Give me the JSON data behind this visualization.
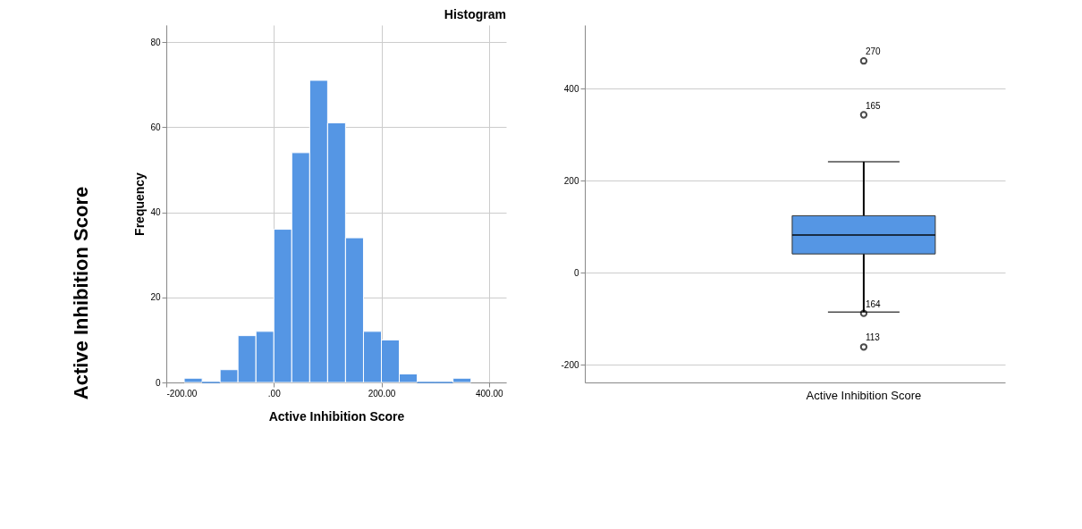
{
  "chart_data": [
    {
      "type": "histogram",
      "title": "Histogram",
      "xlabel": "Active Inhibition Score",
      "ylabel": "Frequency",
      "bins": [
        -166.7,
        -133.3,
        -100,
        -66.7,
        -33.3,
        0,
        33.3,
        66.7,
        100,
        133.3,
        166.7,
        200,
        233.3,
        266.7,
        300,
        333.3,
        366.7
      ],
      "values": [
        1,
        0,
        3,
        11,
        12,
        36,
        54,
        71,
        61,
        34,
        12,
        10,
        2,
        0,
        0,
        1
      ],
      "color": "#5596e4",
      "xlim": [
        -200,
        432
      ],
      "xticks": [
        {
          "value": -200,
          "label": "-200.00"
        },
        {
          "value": 0,
          "label": ".00"
        },
        {
          "value": 200,
          "label": "200.00"
        },
        {
          "value": 400,
          "label": "400.00"
        }
      ],
      "ylim": [
        0,
        84
      ],
      "yticks": [
        0,
        20,
        40,
        60,
        80
      ],
      "grid": true,
      "annotations": [
        "Active Inhibition Score"
      ]
    },
    {
      "type": "box",
      "categories": [
        "Active Inhibition Score"
      ],
      "color": "#5596e4",
      "boxes": [
        {
          "low": -85,
          "q1": 41,
          "median": 82,
          "q3": 124,
          "high": 241,
          "outliers": [
            460,
            343,
            -88,
            -161
          ]
        }
      ],
      "ylim": [
        -238,
        538
      ],
      "yticks": [
        -200,
        0,
        200,
        400
      ],
      "grid": "y",
      "annotations": [
        "270",
        "165",
        "164",
        "113"
      ]
    }
  ]
}
